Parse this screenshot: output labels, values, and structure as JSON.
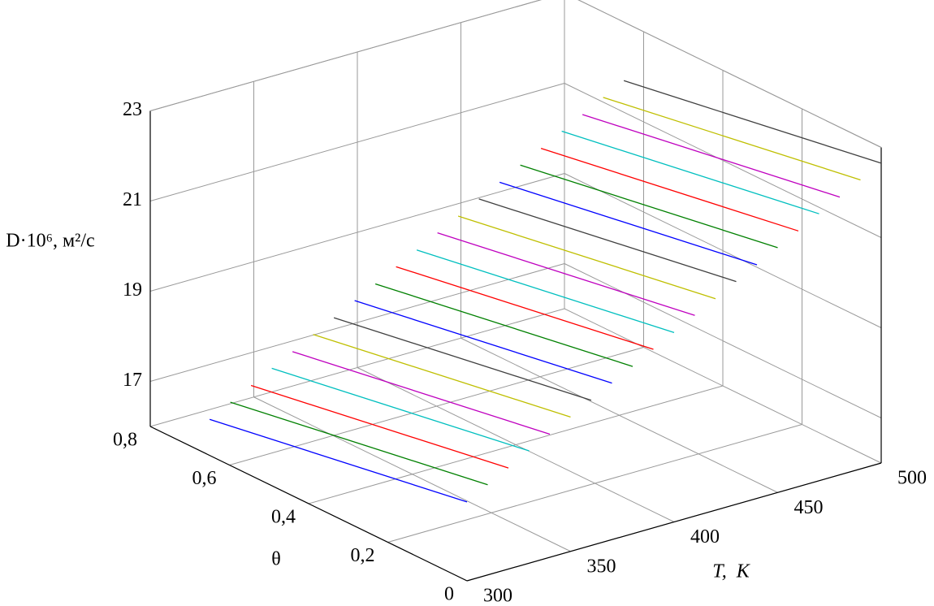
{
  "chart_data": {
    "type": "line3d",
    "x_label": "T,  K",
    "y_label": "θ",
    "z_label": "D·10⁶, м²/с",
    "xlim": [
      300,
      500
    ],
    "xticks": [
      300,
      350,
      400,
      450,
      500
    ],
    "ylim": [
      0,
      0.8
    ],
    "yticks": [
      0,
      {
        "value": 0.2,
        "label": "0,2"
      },
      {
        "value": 0.4,
        "label": "0,4"
      },
      {
        "value": 0.6,
        "label": "0,6"
      },
      {
        "value": 0.8,
        "label": "0,8"
      }
    ],
    "zlim": [
      16,
      23
    ],
    "zticks": [
      17,
      19,
      21,
      23
    ],
    "grid": true,
    "theta": [
      0.65,
      0
    ],
    "series": [
      {
        "color": "#0000ff",
        "t": 300,
        "values": [
          16.8,
          17.75
        ]
      },
      {
        "color": "#008000",
        "t": 310,
        "values": [
          17.05,
          18.0
        ]
      },
      {
        "color": "#ff0000",
        "t": 320,
        "values": [
          17.29,
          18.24
        ]
      },
      {
        "color": "#00bfbf",
        "t": 330,
        "values": [
          17.54,
          18.49
        ]
      },
      {
        "color": "#bf00bf",
        "t": 340,
        "values": [
          17.78,
          18.73
        ]
      },
      {
        "color": "#bfbf00",
        "t": 350,
        "values": [
          18.03,
          18.98
        ]
      },
      {
        "color": "#404040",
        "t": 360,
        "values": [
          18.27,
          19.22
        ]
      },
      {
        "color": "#0000ff",
        "t": 370,
        "values": [
          18.52,
          19.47
        ]
      },
      {
        "color": "#008000",
        "t": 380,
        "values": [
          18.76,
          19.71
        ]
      },
      {
        "color": "#ff0000",
        "t": 390,
        "values": [
          19.01,
          19.96
        ]
      },
      {
        "color": "#00bfbf",
        "t": 400,
        "values": [
          19.25,
          20.2
        ]
      },
      {
        "color": "#bf00bf",
        "t": 410,
        "values": [
          19.5,
          20.45
        ]
      },
      {
        "color": "#bfbf00",
        "t": 420,
        "values": [
          19.74,
          20.69
        ]
      },
      {
        "color": "#404040",
        "t": 430,
        "values": [
          19.99,
          20.94
        ]
      },
      {
        "color": "#0000ff",
        "t": 440,
        "values": [
          20.23,
          21.18
        ]
      },
      {
        "color": "#008000",
        "t": 450,
        "values": [
          20.48,
          21.43
        ]
      },
      {
        "color": "#ff0000",
        "t": 460,
        "values": [
          20.72,
          21.67
        ]
      },
      {
        "color": "#00bfbf",
        "t": 470,
        "values": [
          20.97,
          21.92
        ]
      },
      {
        "color": "#bf00bf",
        "t": 480,
        "values": [
          21.21,
          22.16
        ]
      },
      {
        "color": "#bfbf00",
        "t": 490,
        "values": [
          21.46,
          22.41
        ]
      },
      {
        "color": "#404040",
        "t": 500,
        "values": [
          21.7,
          22.65
        ]
      }
    ]
  }
}
